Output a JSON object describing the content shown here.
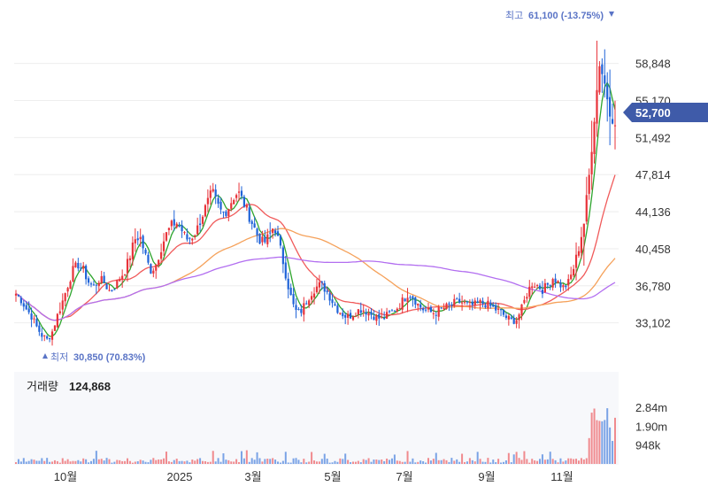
{
  "chart_data": {
    "type": "candlestick",
    "price_axis": {
      "ticks": [
        33102,
        36780,
        40458,
        44136,
        47814,
        51492,
        55170,
        58848
      ],
      "tick_labels": [
        "33,102",
        "36,780",
        "40,458",
        "44,136",
        "47,814",
        "51,492",
        "55,170",
        "58,848"
      ],
      "range": [
        30000,
        62500
      ]
    },
    "time_axis": {
      "ticks": [
        "10월",
        "2025",
        "3월",
        "5월",
        "7월",
        "9월",
        "11월"
      ]
    },
    "current_price": {
      "value": 52700,
      "label": "52,700"
    },
    "high_marker": {
      "prefix": "최고",
      "value_text": "61,100 (-13.75%)",
      "value": 61100
    },
    "low_marker": {
      "prefix": "최저",
      "value_text": "30,850 (70.83%)",
      "value": 30850
    },
    "volume": {
      "title": "거래량",
      "value_text": "124,868",
      "tick_labels": [
        "2.84m",
        "1.90m",
        "948k"
      ],
      "ticks": [
        2840000,
        1900000,
        948000
      ]
    },
    "colors": {
      "up": "#e8333a",
      "down": "#1f63d8",
      "ma5": "#2ea52e",
      "ma20": "#f05a5a",
      "ma60": "#f5a15a",
      "ma120": "#b26ef0",
      "tag": "#3f5ba9",
      "volume_bg": "#f7f8fb",
      "grid": "#eeeeee"
    },
    "price_path_points": [
      [
        0,
        36000
      ],
      [
        4,
        35400
      ],
      [
        8,
        34500
      ],
      [
        12,
        33800
      ],
      [
        16,
        32700
      ],
      [
        20,
        31900
      ],
      [
        24,
        31400
      ],
      [
        28,
        32200
      ],
      [
        32,
        33800
      ],
      [
        36,
        35200
      ],
      [
        40,
        36800
      ],
      [
        44,
        38300
      ],
      [
        48,
        38900
      ],
      [
        52,
        38400
      ],
      [
        56,
        37200
      ],
      [
        60,
        36600
      ],
      [
        64,
        37400
      ],
      [
        68,
        37200
      ],
      [
        72,
        36300
      ],
      [
        76,
        36600
      ],
      [
        80,
        37500
      ],
      [
        84,
        38200
      ],
      [
        88,
        39600
      ],
      [
        92,
        41400
      ],
      [
        96,
        41700
      ],
      [
        100,
        39900
      ],
      [
        104,
        38300
      ],
      [
        108,
        38700
      ],
      [
        112,
        40400
      ],
      [
        116,
        41800
      ],
      [
        120,
        42700
      ],
      [
        124,
        43100
      ],
      [
        128,
        42400
      ],
      [
        132,
        41400
      ],
      [
        136,
        41600
      ],
      [
        140,
        42300
      ],
      [
        144,
        43700
      ],
      [
        148,
        44900
      ],
      [
        152,
        46100
      ],
      [
        156,
        44800
      ],
      [
        160,
        43900
      ],
      [
        164,
        44400
      ],
      [
        168,
        45500
      ],
      [
        172,
        46100
      ],
      [
        176,
        45100
      ],
      [
        180,
        43900
      ],
      [
        184,
        42700
      ],
      [
        188,
        41500
      ],
      [
        192,
        41000
      ],
      [
        196,
        41700
      ],
      [
        200,
        42800
      ],
      [
        204,
        40900
      ],
      [
        208,
        38500
      ],
      [
        212,
        36100
      ],
      [
        216,
        34300
      ],
      [
        220,
        34100
      ],
      [
        224,
        35000
      ],
      [
        228,
        36000
      ],
      [
        232,
        36600
      ],
      [
        236,
        36900
      ],
      [
        240,
        36400
      ],
      [
        244,
        35500
      ],
      [
        248,
        34600
      ],
      [
        252,
        34100
      ],
      [
        256,
        33700
      ],
      [
        260,
        33900
      ],
      [
        264,
        34300
      ],
      [
        268,
        34500
      ],
      [
        272,
        34200
      ],
      [
        276,
        33900
      ],
      [
        280,
        33600
      ],
      [
        284,
        33500
      ],
      [
        288,
        33900
      ],
      [
        292,
        34300
      ],
      [
        296,
        34700
      ],
      [
        300,
        35400
      ],
      [
        304,
        36100
      ],
      [
        308,
        35600
      ],
      [
        312,
        34800
      ],
      [
        316,
        34400
      ],
      [
        320,
        34200
      ],
      [
        324,
        34100
      ],
      [
        328,
        34400
      ],
      [
        332,
        34600
      ],
      [
        336,
        34800
      ],
      [
        340,
        35100
      ],
      [
        344,
        35200
      ],
      [
        348,
        35000
      ],
      [
        352,
        34800
      ],
      [
        356,
        34900
      ],
      [
        360,
        35100
      ],
      [
        364,
        35000
      ],
      [
        368,
        34700
      ],
      [
        372,
        34400
      ],
      [
        376,
        34100
      ],
      [
        380,
        33600
      ],
      [
        384,
        33300
      ],
      [
        388,
        33500
      ],
      [
        392,
        34600
      ],
      [
        396,
        36100
      ],
      [
        400,
        37100
      ],
      [
        404,
        36800
      ],
      [
        408,
        36400
      ],
      [
        412,
        36900
      ],
      [
        416,
        37600
      ],
      [
        420,
        37100
      ],
      [
        424,
        36600
      ],
      [
        428,
        37100
      ],
      [
        432,
        38600
      ],
      [
        436,
        40600
      ],
      [
        440,
        43100
      ],
      [
        444,
        47800
      ],
      [
        448,
        53600
      ],
      [
        452,
        59000
      ],
      [
        456,
        56800
      ],
      [
        460,
        54200
      ],
      [
        464,
        52700
      ]
    ]
  }
}
